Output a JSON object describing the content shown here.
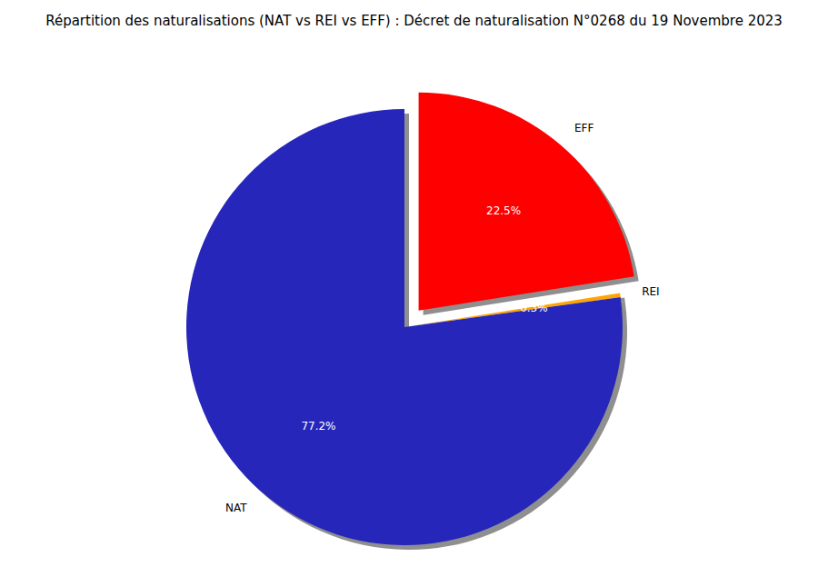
{
  "chart_data": {
    "type": "pie",
    "title": "Répartition des naturalisations (NAT vs REI vs EFF) : Décret de naturalisation N°0268 du 19 Novembre 2023",
    "categories": [
      "EFF",
      "REI",
      "NAT"
    ],
    "values": [
      22.5,
      0.3,
      77.2
    ],
    "value_labels": [
      "22.5%",
      "0.3%",
      "77.2%"
    ],
    "colors": [
      "#ff0000",
      "#ffa500",
      "#2626bb"
    ],
    "data_labels": true
  }
}
